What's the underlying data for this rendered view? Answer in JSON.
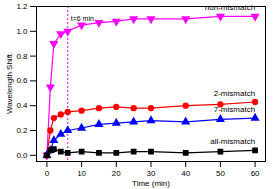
{
  "chart_data": {
    "type": "line",
    "xlabel": "Time (min)",
    "ylabel": "Wavelength Shift",
    "x": [
      0,
      1,
      2,
      4,
      6,
      10,
      15,
      20,
      25,
      30,
      40,
      50,
      60
    ],
    "series": [
      {
        "name": "non-mismatch",
        "color": "#ff00ff",
        "marker": "triangle-down",
        "line_style": "solid",
        "values": [
          0.0,
          0.55,
          0.9,
          0.98,
          1.0,
          1.05,
          1.07,
          1.08,
          1.1,
          1.1,
          1.1,
          1.12,
          1.12
        ]
      },
      {
        "name": "2-mismatch",
        "color": "#ff0000",
        "marker": "circle",
        "line_style": "solid",
        "values": [
          0.0,
          0.2,
          0.3,
          0.33,
          0.35,
          0.36,
          0.38,
          0.39,
          0.38,
          0.38,
          0.4,
          0.41,
          0.43
        ]
      },
      {
        "name": "7-mismatch",
        "color": "#0000ff",
        "marker": "triangle",
        "line_style": "solid",
        "values": [
          0.0,
          0.04,
          0.12,
          0.17,
          0.2,
          0.22,
          0.25,
          0.26,
          0.27,
          0.28,
          0.27,
          0.29,
          0.3
        ]
      },
      {
        "name": "all-mismatch",
        "color": "#000000",
        "marker": "square",
        "line_style": "solid",
        "values": [
          0.0,
          0.04,
          0.05,
          0.03,
          0.02,
          0.03,
          0.02,
          0.02,
          0.03,
          0.03,
          0.02,
          0.03,
          0.04
        ]
      }
    ],
    "annotations": [
      {
        "text": "t=6 min",
        "x": 6
      }
    ],
    "xlim": [
      -3,
      63
    ],
    "xticks": [
      0,
      10,
      20,
      30,
      40,
      50,
      60
    ],
    "ylim": [
      -0.05,
      1.2
    ],
    "yticks": [
      {
        "value": 0,
        "label": "0.0"
      },
      {
        "value": 0.2,
        "label": "0.2"
      },
      {
        "value": 0.4,
        "label": "0.4"
      },
      {
        "value": 0.6,
        "label": "0.6"
      },
      {
        "value": 0.8,
        "label": "0.8"
      },
      {
        "value": 1,
        "label": "1.0"
      },
      {
        "value": 1.2,
        "label": "1.2"
      }
    ],
    "grid": false
  }
}
